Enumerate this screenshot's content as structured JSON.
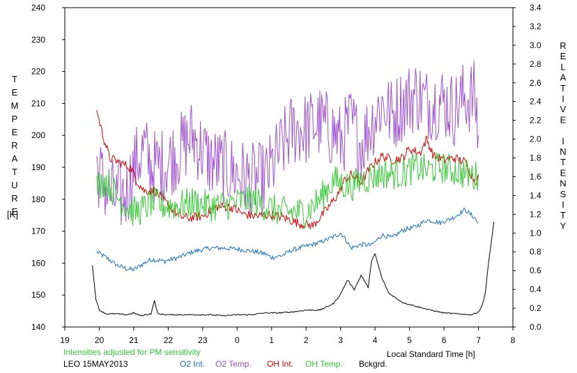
{
  "chart_data": {
    "type": "line",
    "station": "LEO 15MAY2013",
    "note": "Intensities adjusted for PM sensitivity",
    "xlabel": "Local Standard Time [h]",
    "xlim": [
      19,
      32
    ],
    "x_tick_values": [
      19,
      20,
      21,
      22,
      23,
      24,
      25,
      26,
      27,
      28,
      29,
      30,
      31,
      32
    ],
    "x_tick_labels": [
      "19",
      "20",
      "21",
      "22",
      "23",
      "0",
      "1",
      "2",
      "3",
      "4",
      "5",
      "6",
      "7",
      "8"
    ],
    "ylabel_left_letters": [
      "T",
      "E",
      "M",
      "P",
      "E",
      "R",
      "A",
      "T",
      "U",
      "R",
      "E"
    ],
    "ylabel_left_unit": "[K]",
    "ylim_left": [
      140,
      240
    ],
    "y_left_ticks": [
      "140",
      "150",
      "160",
      "170",
      "180",
      "190",
      "200",
      "210",
      "220",
      "230",
      "240"
    ],
    "ylabel_right_letters": [
      "R",
      "E",
      "L",
      "A",
      "T",
      "I",
      "V",
      "E",
      "",
      "I",
      "N",
      "T",
      "E",
      "N",
      "S",
      "I",
      "T",
      "Y"
    ],
    "ylim_right": [
      0.0,
      3.4
    ],
    "y_right_ticks": [
      "0.0",
      "0.2",
      "0.4",
      "0.6",
      "0.8",
      "1.0",
      "1.2",
      "1.4",
      "1.6",
      "1.8",
      "2.0",
      "2.2",
      "2.4",
      "2.6",
      "2.8",
      "3.0",
      "3.2",
      "3.4"
    ],
    "series": [
      {
        "name": "O2 Int.",
        "axis": "right",
        "color": "#1a6fd0",
        "x": [
          19.93,
          20.2,
          20.5,
          20.8,
          21.0,
          21.3,
          21.5,
          21.9,
          22.3,
          22.7,
          23.2,
          23.6,
          24.0,
          24.4,
          24.8,
          25.0,
          25.3,
          25.6,
          26.0,
          26.4,
          26.8,
          27.0,
          27.1,
          27.3,
          27.6,
          27.9,
          28.2,
          28.5,
          28.8,
          29.2,
          29.5,
          29.9,
          30.3,
          30.6,
          30.9,
          31.0
        ],
        "values": [
          0.8,
          0.74,
          0.66,
          0.62,
          0.61,
          0.68,
          0.72,
          0.7,
          0.74,
          0.8,
          0.84,
          0.84,
          0.83,
          0.81,
          0.78,
          0.74,
          0.76,
          0.82,
          0.86,
          0.9,
          0.96,
          1.0,
          0.96,
          0.84,
          0.88,
          0.87,
          0.98,
          0.95,
          1.03,
          1.07,
          1.14,
          1.11,
          1.17,
          1.25,
          1.16,
          1.1
        ]
      },
      {
        "name": "O2 Temp.",
        "axis": "left",
        "color": "#a050d8",
        "x": [
          19.93,
          20.2,
          20.5,
          20.8,
          21.0,
          21.3,
          21.5,
          21.9,
          22.3,
          22.7,
          23.2,
          23.6,
          24.0,
          24.4,
          24.8,
          25.0,
          25.3,
          25.6,
          26.0,
          26.4,
          26.8,
          27.0,
          27.3,
          27.6,
          27.9,
          28.2,
          28.5,
          28.8,
          29.2,
          29.5,
          29.9,
          30.3,
          30.6,
          30.9,
          31.0
        ],
        "values": [
          190,
          183,
          180,
          182,
          190,
          196,
          190,
          191,
          195,
          200,
          192,
          190,
          188,
          186,
          186,
          190,
          196,
          202,
          202,
          204,
          201,
          198,
          204,
          197,
          204,
          210,
          206,
          210,
          213,
          210,
          211,
          208,
          212,
          212,
          200
        ]
      },
      {
        "name": "OH Int.",
        "axis": "right",
        "color": "#dd0000",
        "x": [
          19.93,
          20.1,
          20.3,
          20.6,
          20.9,
          21.1,
          21.3,
          21.6,
          22.0,
          22.3,
          22.6,
          23.0,
          23.4,
          23.8,
          24.2,
          24.6,
          25.0,
          25.4,
          25.8,
          26.2,
          26.6,
          26.9,
          27.1,
          27.3,
          27.6,
          27.9,
          28.2,
          28.5,
          28.8,
          29.0,
          29.3,
          29.5,
          29.7,
          30.0,
          30.3,
          30.6,
          30.9,
          31.0
        ],
        "values": [
          2.3,
          2.05,
          1.8,
          1.75,
          1.7,
          1.55,
          1.45,
          1.45,
          1.3,
          1.18,
          1.16,
          1.18,
          1.28,
          1.28,
          1.2,
          1.18,
          1.2,
          1.16,
          1.1,
          1.08,
          1.25,
          1.4,
          1.55,
          1.62,
          1.54,
          1.72,
          1.82,
          1.78,
          1.8,
          1.9,
          1.85,
          2.0,
          1.82,
          1.78,
          1.8,
          1.76,
          1.55,
          1.6
        ]
      },
      {
        "name": "OH Temp.",
        "axis": "left",
        "color": "#33cc33",
        "x": [
          19.93,
          20.2,
          20.5,
          20.8,
          21.0,
          21.3,
          21.5,
          21.9,
          22.3,
          22.7,
          23.2,
          23.6,
          24.0,
          24.4,
          24.8,
          25.0,
          25.3,
          25.6,
          26.0,
          26.4,
          26.8,
          27.0,
          27.3,
          27.6,
          27.9,
          28.2,
          28.5,
          28.8,
          29.2,
          29.5,
          29.9,
          30.3,
          30.6,
          30.9,
          31.0
        ],
        "values": [
          184,
          186,
          181,
          178,
          176,
          177,
          179,
          178,
          178,
          179,
          178,
          178,
          179,
          180,
          178,
          177,
          176,
          176,
          176,
          180,
          186,
          185,
          184,
          186,
          187,
          188,
          188,
          188,
          190,
          189,
          190,
          189,
          188,
          187,
          188
        ]
      },
      {
        "name": "Bckgrd.",
        "axis": "right",
        "color": "#000000",
        "x": [
          19.8,
          19.9,
          20.0,
          20.2,
          20.5,
          20.8,
          21.0,
          21.2,
          21.5,
          21.6,
          21.7,
          22.0,
          22.4,
          22.8,
          23.2,
          23.6,
          24.0,
          24.4,
          24.8,
          25.2,
          25.6,
          26.0,
          26.4,
          26.8,
          27.0,
          27.2,
          27.4,
          27.6,
          27.8,
          27.9,
          28.0,
          28.2,
          28.4,
          28.8,
          29.2,
          29.6,
          30.0,
          30.4,
          30.8,
          31.0,
          31.1,
          31.2,
          31.3,
          31.45
        ],
        "values": [
          0.66,
          0.3,
          0.18,
          0.14,
          0.14,
          0.13,
          0.15,
          0.12,
          0.14,
          0.28,
          0.14,
          0.13,
          0.13,
          0.13,
          0.13,
          0.12,
          0.13,
          0.13,
          0.15,
          0.15,
          0.16,
          0.18,
          0.18,
          0.25,
          0.35,
          0.5,
          0.4,
          0.55,
          0.42,
          0.7,
          0.78,
          0.52,
          0.36,
          0.26,
          0.22,
          0.18,
          0.15,
          0.14,
          0.13,
          0.16,
          0.22,
          0.36,
          0.7,
          1.12
        ]
      }
    ]
  }
}
